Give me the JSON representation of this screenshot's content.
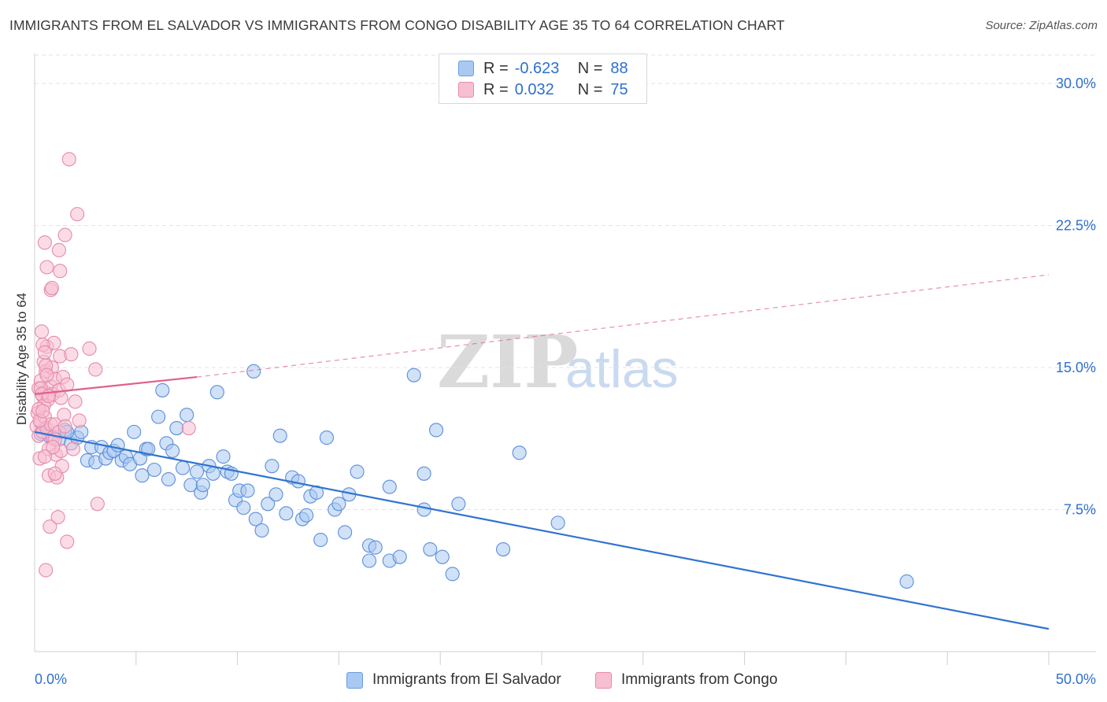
{
  "title": "IMMIGRANTS FROM EL SALVADOR VS IMMIGRANTS FROM CONGO DISABILITY AGE 35 TO 64 CORRELATION CHART",
  "source": "Source: ZipAtlas.com",
  "watermark": {
    "zip": "ZIP",
    "atlas": "atlas"
  },
  "legend": {
    "r_label": "R =",
    "n_label": "N =",
    "rows": [
      {
        "r": "-0.623",
        "n": "88"
      },
      {
        "r": "0.032",
        "n": "75"
      }
    ]
  },
  "colors": {
    "blue_fill": "#a9c9f3",
    "blue_stroke": "#5b8fd8",
    "blue_line": "#2f74d0",
    "pink_fill": "#f7bfd2",
    "pink_stroke": "#e68aaa",
    "pink_line": "#e0608c",
    "tick_label": "#2e6fd1",
    "grid": "#e3e3e3"
  },
  "chart_data": {
    "type": "scatter",
    "title": "IMMIGRANTS FROM EL SALVADOR VS IMMIGRANTS FROM CONGO DISABILITY AGE 35 TO 64 CORRELATION CHART",
    "xlabel": "",
    "ylabel": "Disability Age 35 to 64",
    "xlim": [
      0,
      50
    ],
    "ylim": [
      0,
      31.5
    ],
    "x_tick_labels": [
      "0.0%",
      "50.0%"
    ],
    "y_ticks": [
      7.5,
      15.0,
      22.5,
      30.0
    ],
    "y_tick_labels": [
      "7.5%",
      "15.0%",
      "22.5%",
      "30.0%"
    ],
    "grid": "horizontal dashed",
    "legend_position": "top-center",
    "series": [
      {
        "name": "Immigrants from El Salvador",
        "color": "blue",
        "trend": {
          "x": [
            0,
            50
          ],
          "y": [
            11.6,
            1.2
          ],
          "style": "solid"
        },
        "points": [
          [
            0.3,
            11.5
          ],
          [
            0.5,
            11.8
          ],
          [
            0.7,
            11.4
          ],
          [
            0.9,
            11.3
          ],
          [
            1.2,
            11.2
          ],
          [
            1.5,
            11.7
          ],
          [
            1.8,
            11.0
          ],
          [
            2.1,
            11.3
          ],
          [
            2.3,
            11.6
          ],
          [
            2.6,
            10.1
          ],
          [
            2.8,
            10.8
          ],
          [
            3.0,
            10.0
          ],
          [
            3.3,
            10.8
          ],
          [
            3.5,
            10.2
          ],
          [
            3.7,
            10.5
          ],
          [
            3.9,
            10.6
          ],
          [
            4.1,
            10.9
          ],
          [
            4.3,
            10.1
          ],
          [
            4.5,
            10.3
          ],
          [
            4.7,
            9.9
          ],
          [
            4.9,
            11.6
          ],
          [
            5.2,
            10.2
          ],
          [
            5.5,
            10.7
          ],
          [
            5.3,
            9.3
          ],
          [
            5.6,
            10.7
          ],
          [
            5.9,
            9.6
          ],
          [
            6.1,
            12.4
          ],
          [
            6.3,
            13.8
          ],
          [
            6.5,
            11.0
          ],
          [
            6.6,
            9.1
          ],
          [
            6.8,
            10.6
          ],
          [
            7.0,
            11.8
          ],
          [
            7.3,
            9.7
          ],
          [
            7.5,
            12.5
          ],
          [
            7.7,
            8.8
          ],
          [
            8.0,
            9.5
          ],
          [
            8.2,
            8.4
          ],
          [
            8.3,
            8.8
          ],
          [
            8.6,
            9.8
          ],
          [
            8.8,
            9.4
          ],
          [
            9.0,
            13.7
          ],
          [
            9.3,
            10.3
          ],
          [
            9.5,
            9.5
          ],
          [
            9.7,
            9.4
          ],
          [
            9.9,
            8.0
          ],
          [
            10.1,
            8.5
          ],
          [
            10.3,
            7.6
          ],
          [
            10.5,
            8.5
          ],
          [
            10.8,
            14.8
          ],
          [
            10.9,
            7.0
          ],
          [
            11.2,
            6.4
          ],
          [
            11.5,
            7.8
          ],
          [
            11.7,
            9.8
          ],
          [
            11.9,
            8.3
          ],
          [
            12.1,
            11.4
          ],
          [
            12.4,
            7.3
          ],
          [
            12.7,
            9.2
          ],
          [
            13.0,
            9.0
          ],
          [
            13.2,
            7.0
          ],
          [
            13.4,
            7.2
          ],
          [
            13.6,
            8.2
          ],
          [
            13.9,
            8.4
          ],
          [
            14.1,
            5.9
          ],
          [
            14.4,
            11.3
          ],
          [
            14.8,
            7.5
          ],
          [
            15.0,
            7.8
          ],
          [
            15.3,
            6.3
          ],
          [
            15.5,
            8.3
          ],
          [
            15.9,
            9.5
          ],
          [
            16.5,
            5.6
          ],
          [
            16.5,
            4.8
          ],
          [
            16.8,
            5.5
          ],
          [
            17.5,
            8.7
          ],
          [
            17.5,
            4.8
          ],
          [
            18.0,
            5.0
          ],
          [
            18.7,
            14.6
          ],
          [
            19.2,
            9.4
          ],
          [
            19.2,
            7.5
          ],
          [
            19.5,
            5.4
          ],
          [
            19.8,
            11.7
          ],
          [
            20.1,
            5.0
          ],
          [
            20.6,
            4.1
          ],
          [
            20.9,
            7.8
          ],
          [
            23.1,
            5.4
          ],
          [
            23.9,
            10.5
          ],
          [
            25.8,
            6.8
          ],
          [
            43.0,
            3.7
          ],
          [
            1.6,
            11.6
          ]
        ]
      },
      {
        "name": "Immigrants from Congo",
        "color": "pink",
        "trend": {
          "x": [
            0,
            8
          ],
          "y": [
            13.6,
            14.5
          ],
          "style": "solid"
        },
        "trend_extension": {
          "x": [
            8,
            50
          ],
          "y": [
            14.5,
            19.9
          ],
          "style": "dashed"
        },
        "points": [
          [
            0.1,
            11.9
          ],
          [
            0.15,
            12.6
          ],
          [
            0.2,
            13.9
          ],
          [
            0.2,
            11.4
          ],
          [
            0.25,
            10.2
          ],
          [
            0.3,
            14.3
          ],
          [
            0.3,
            12.1
          ],
          [
            0.35,
            16.9
          ],
          [
            0.4,
            13.5
          ],
          [
            0.4,
            11.6
          ],
          [
            0.45,
            15.3
          ],
          [
            0.5,
            13.7
          ],
          [
            0.5,
            12.4
          ],
          [
            0.55,
            14.8
          ],
          [
            0.6,
            16.1
          ],
          [
            0.6,
            11.8
          ],
          [
            0.65,
            13.3
          ],
          [
            0.7,
            10.7
          ],
          [
            0.7,
            9.3
          ],
          [
            0.75,
            6.6
          ],
          [
            0.8,
            14.0
          ],
          [
            0.8,
            12.0
          ],
          [
            0.85,
            15.0
          ],
          [
            0.9,
            13.6
          ],
          [
            0.9,
            11.3
          ],
          [
            0.95,
            16.3
          ],
          [
            1.0,
            14.4
          ],
          [
            1.0,
            12.0
          ],
          [
            1.05,
            10.4
          ],
          [
            1.1,
            9.2
          ],
          [
            1.15,
            7.1
          ],
          [
            1.2,
            13.8
          ],
          [
            1.2,
            11.6
          ],
          [
            1.25,
            15.6
          ],
          [
            1.3,
            13.4
          ],
          [
            1.3,
            10.6
          ],
          [
            1.35,
            9.8
          ],
          [
            1.4,
            14.5
          ],
          [
            1.45,
            12.5
          ],
          [
            1.5,
            22.0
          ],
          [
            1.5,
            11.9
          ],
          [
            1.6,
            5.8
          ],
          [
            1.6,
            14.1
          ],
          [
            1.7,
            26.0
          ],
          [
            1.8,
            15.7
          ],
          [
            1.9,
            10.7
          ],
          [
            2.0,
            13.2
          ],
          [
            2.1,
            23.1
          ],
          [
            2.2,
            12.2
          ],
          [
            2.7,
            16.0
          ],
          [
            3.0,
            14.9
          ],
          [
            3.1,
            7.8
          ],
          [
            0.5,
            21.6
          ],
          [
            0.6,
            20.3
          ],
          [
            1.2,
            21.2
          ],
          [
            1.25,
            20.1
          ],
          [
            0.8,
            19.1
          ],
          [
            0.85,
            19.2
          ],
          [
            0.4,
            16.2
          ],
          [
            0.5,
            15.8
          ],
          [
            0.55,
            15.1
          ],
          [
            0.6,
            14.6
          ],
          [
            0.3,
            13.9
          ],
          [
            0.35,
            13.6
          ],
          [
            0.45,
            13.0
          ],
          [
            0.2,
            12.8
          ],
          [
            0.25,
            12.2
          ],
          [
            1.0,
            11.2
          ],
          [
            0.9,
            10.8
          ],
          [
            0.5,
            10.3
          ],
          [
            7.6,
            11.8
          ],
          [
            0.55,
            4.3
          ],
          [
            1.0,
            9.4
          ],
          [
            0.7,
            13.5
          ],
          [
            0.4,
            12.7
          ]
        ]
      }
    ]
  },
  "bottom_legend": [
    {
      "label": "Immigrants from El Salvador"
    },
    {
      "label": "Immigrants from Congo"
    }
  ]
}
